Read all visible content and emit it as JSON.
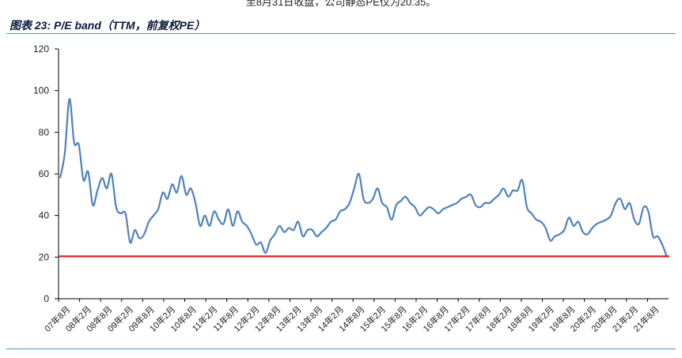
{
  "header_text": "至8月31日收盘，公司静态PE仅为20.35。",
  "figure_title": "图表 23:  P/E band（TTM，前复权PE）",
  "colors": {
    "line": "#4f81bd",
    "reference": "#e02020",
    "rule": "#4d93c8"
  },
  "chart_data": {
    "type": "line",
    "title": "图表 23:  P/E band（TTM，前复权PE）",
    "xlabel": "",
    "ylabel": "",
    "ylim": [
      0,
      120
    ],
    "yticks": [
      0,
      20,
      40,
      60,
      80,
      100,
      120
    ],
    "x_tick_labels": [
      "07年8月",
      "08年2月",
      "08年8月",
      "09年2月",
      "09年8月",
      "10年2月",
      "10年8月",
      "11年2月",
      "11年8月",
      "12年2月",
      "12年8月",
      "13年2月",
      "13年8月",
      "14年2月",
      "14年8月",
      "15年2月",
      "15年8月",
      "16年2月",
      "16年8月",
      "17年2月",
      "17年8月",
      "18年2月",
      "18年8月",
      "19年2月",
      "19年8月",
      "20年2月",
      "20年8月",
      "21年2月",
      "21年8月"
    ],
    "grid": false,
    "legend": "none",
    "series": [
      {
        "values": [
          58,
          70,
          96,
          75,
          74,
          57,
          61,
          45,
          52,
          58,
          53,
          60,
          44,
          41,
          41,
          27,
          33,
          29,
          31,
          37,
          40,
          43,
          51,
          48,
          55,
          51,
          59,
          50,
          53,
          46,
          35,
          40,
          35,
          42,
          38,
          36,
          43,
          35,
          42,
          37,
          35,
          31,
          26,
          27,
          22,
          28,
          31,
          35,
          32,
          34,
          33,
          37,
          30,
          33,
          33,
          30,
          32,
          34,
          37,
          38,
          42,
          43,
          46,
          53,
          60,
          48,
          46,
          48,
          53,
          46,
          44,
          38,
          45,
          47,
          49,
          46,
          44,
          40,
          42,
          44,
          43,
          41,
          43,
          44,
          45,
          46,
          48,
          49,
          50,
          45,
          44,
          46,
          46,
          48,
          50,
          53,
          49,
          52,
          52,
          57,
          44,
          41,
          38,
          37,
          34,
          28,
          30,
          31,
          33,
          39,
          35,
          37,
          32,
          31,
          34,
          36,
          37,
          38,
          40,
          46,
          48,
          43,
          46,
          38,
          36,
          44,
          42,
          30,
          30,
          26,
          20
        ]
      },
      {
        "values": [
          20.35,
          20.35
        ]
      }
    ],
    "annotations": []
  }
}
